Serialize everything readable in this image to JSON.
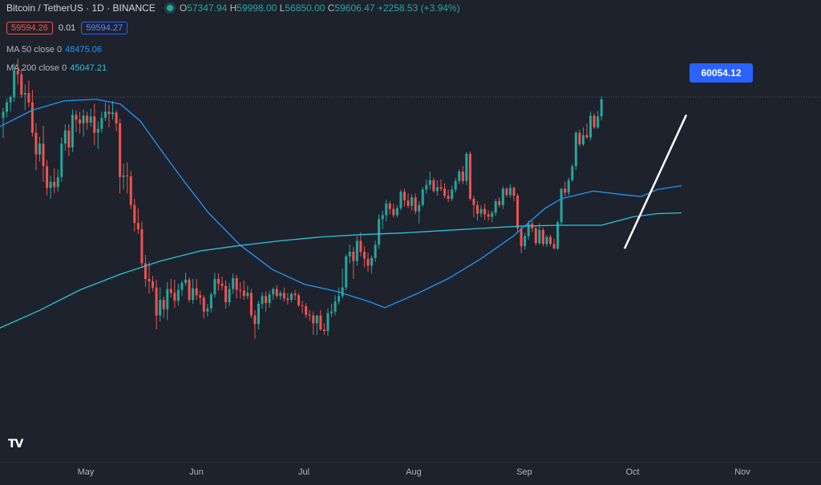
{
  "header": {
    "symbol": "Bitcoin / TetherUS · 1D · BINANCE",
    "ohlc": {
      "o_label": "O",
      "o": "57347.94",
      "h_label": "H",
      "h": "59998.00",
      "l_label": "L",
      "l": "56850.00",
      "c_label": "C",
      "c": "59606.47",
      "change": "+2258.53 (+3.94%)"
    },
    "sell_price": "59594.26",
    "spread": "0.01",
    "buy_price": "59594.27",
    "ma50": {
      "label": "MA 50 close 0",
      "value": "48475.06"
    },
    "ma200": {
      "label": "MA 200 close 0",
      "value": "45047.21"
    }
  },
  "price_tag": "60054.12",
  "logo_text": "TV",
  "colors": {
    "up": "#26a69a",
    "down": "#ef5350",
    "ma50": "#2196f3",
    "ma200": "#26c6da",
    "trendline": "#ffffff",
    "background": "#1e222d"
  },
  "chart_data": {
    "type": "candlestick",
    "x_axis_labels": [
      "May",
      "Jun",
      "Jul",
      "Aug",
      "Sep",
      "Oct",
      "Nov"
    ],
    "ylim": [
      28000,
      65000
    ],
    "candles": [
      {
        "o": 57200,
        "h": 58500,
        "l": 54600,
        "c": 58000
      },
      {
        "o": 58000,
        "h": 59700,
        "l": 57300,
        "c": 59200
      },
      {
        "o": 59200,
        "h": 60100,
        "l": 58000,
        "c": 59900
      },
      {
        "o": 59900,
        "h": 64200,
        "l": 59300,
        "c": 63300
      },
      {
        "o": 63300,
        "h": 64800,
        "l": 61500,
        "c": 62800
      },
      {
        "o": 62800,
        "h": 63500,
        "l": 59800,
        "c": 60200
      },
      {
        "o": 60200,
        "h": 61500,
        "l": 58200,
        "c": 60400
      },
      {
        "o": 60400,
        "h": 62000,
        "l": 58600,
        "c": 59200
      },
      {
        "o": 59200,
        "h": 60800,
        "l": 54800,
        "c": 55300
      },
      {
        "o": 55300,
        "h": 56500,
        "l": 50500,
        "c": 52500
      },
      {
        "o": 52500,
        "h": 54800,
        "l": 51600,
        "c": 53900
      },
      {
        "o": 53900,
        "h": 56200,
        "l": 49000,
        "c": 51000
      },
      {
        "o": 51000,
        "h": 51800,
        "l": 47200,
        "c": 48200
      },
      {
        "o": 48200,
        "h": 49800,
        "l": 46800,
        "c": 49000
      },
      {
        "o": 49000,
        "h": 50700,
        "l": 47500,
        "c": 48300
      },
      {
        "o": 48300,
        "h": 50600,
        "l": 47700,
        "c": 49600
      },
      {
        "o": 49600,
        "h": 54700,
        "l": 49000,
        "c": 53900
      },
      {
        "o": 53900,
        "h": 56400,
        "l": 53000,
        "c": 55600
      },
      {
        "o": 55600,
        "h": 56400,
        "l": 52300,
        "c": 53400
      },
      {
        "o": 53400,
        "h": 58300,
        "l": 52800,
        "c": 57600
      },
      {
        "o": 57600,
        "h": 58200,
        "l": 55400,
        "c": 57000
      },
      {
        "o": 57000,
        "h": 58000,
        "l": 55200,
        "c": 56500
      },
      {
        "o": 56500,
        "h": 58300,
        "l": 54800,
        "c": 57500
      },
      {
        "o": 57500,
        "h": 58000,
        "l": 55700,
        "c": 56600
      },
      {
        "o": 56600,
        "h": 58400,
        "l": 56100,
        "c": 57400
      },
      {
        "o": 57400,
        "h": 59000,
        "l": 53700,
        "c": 55300
      },
      {
        "o": 55300,
        "h": 56800,
        "l": 53200,
        "c": 55800
      },
      {
        "o": 55800,
        "h": 58000,
        "l": 55300,
        "c": 57200
      },
      {
        "o": 57200,
        "h": 59200,
        "l": 56800,
        "c": 58000
      },
      {
        "o": 58000,
        "h": 58900,
        "l": 56000,
        "c": 57700
      },
      {
        "o": 57700,
        "h": 59400,
        "l": 57000,
        "c": 57900
      },
      {
        "o": 57900,
        "h": 58200,
        "l": 55500,
        "c": 56500
      },
      {
        "o": 56500,
        "h": 57100,
        "l": 47500,
        "c": 49600
      },
      {
        "o": 49600,
        "h": 51300,
        "l": 48000,
        "c": 49800
      },
      {
        "o": 49800,
        "h": 51500,
        "l": 47500,
        "c": 49700
      },
      {
        "o": 49700,
        "h": 50400,
        "l": 45500,
        "c": 46000
      },
      {
        "o": 46000,
        "h": 46800,
        "l": 42600,
        "c": 43700
      },
      {
        "o": 43700,
        "h": 45600,
        "l": 42300,
        "c": 42900
      },
      {
        "o": 42900,
        "h": 43900,
        "l": 37900,
        "c": 38500
      },
      {
        "o": 38500,
        "h": 39600,
        "l": 35500,
        "c": 36500
      },
      {
        "o": 36500,
        "h": 38700,
        "l": 34600,
        "c": 36200
      },
      {
        "o": 36200,
        "h": 36900,
        "l": 34900,
        "c": 35400
      },
      {
        "o": 35400,
        "h": 36400,
        "l": 30000,
        "c": 31800
      },
      {
        "o": 31800,
        "h": 35400,
        "l": 31000,
        "c": 33800
      },
      {
        "o": 33800,
        "h": 34200,
        "l": 31500,
        "c": 32600
      },
      {
        "o": 32600,
        "h": 36100,
        "l": 31200,
        "c": 35200
      },
      {
        "o": 35200,
        "h": 36500,
        "l": 34100,
        "c": 34700
      },
      {
        "o": 34700,
        "h": 36400,
        "l": 32800,
        "c": 33700
      },
      {
        "o": 33700,
        "h": 35900,
        "l": 33100,
        "c": 35100
      },
      {
        "o": 35100,
        "h": 36300,
        "l": 34300,
        "c": 36000
      },
      {
        "o": 36000,
        "h": 37300,
        "l": 35600,
        "c": 36400
      },
      {
        "o": 36400,
        "h": 36700,
        "l": 33500,
        "c": 33800
      },
      {
        "o": 33800,
        "h": 36500,
        "l": 33300,
        "c": 35300
      },
      {
        "o": 35300,
        "h": 36500,
        "l": 33800,
        "c": 34400
      },
      {
        "o": 34400,
        "h": 35000,
        "l": 33200,
        "c": 34100
      },
      {
        "o": 34100,
        "h": 34400,
        "l": 31400,
        "c": 32300
      },
      {
        "o": 32300,
        "h": 33300,
        "l": 31700,
        "c": 32700
      },
      {
        "o": 32700,
        "h": 34800,
        "l": 32200,
        "c": 34500
      },
      {
        "o": 34500,
        "h": 37300,
        "l": 34100,
        "c": 36500
      },
      {
        "o": 36500,
        "h": 37200,
        "l": 35000,
        "c": 35900
      },
      {
        "o": 35900,
        "h": 36800,
        "l": 35000,
        "c": 35600
      },
      {
        "o": 35600,
        "h": 36300,
        "l": 32700,
        "c": 33500
      },
      {
        "o": 33500,
        "h": 36000,
        "l": 33000,
        "c": 35200
      },
      {
        "o": 35200,
        "h": 37200,
        "l": 34600,
        "c": 36600
      },
      {
        "o": 36600,
        "h": 37000,
        "l": 34000,
        "c": 35100
      },
      {
        "o": 35100,
        "h": 36100,
        "l": 34000,
        "c": 35000
      },
      {
        "o": 35000,
        "h": 36300,
        "l": 33800,
        "c": 34300
      },
      {
        "o": 34300,
        "h": 35600,
        "l": 33900,
        "c": 34700
      },
      {
        "o": 34700,
        "h": 35200,
        "l": 31500,
        "c": 31800
      },
      {
        "o": 31800,
        "h": 32500,
        "l": 28800,
        "c": 30700
      },
      {
        "o": 30700,
        "h": 33700,
        "l": 30000,
        "c": 33300
      },
      {
        "o": 33300,
        "h": 34800,
        "l": 32700,
        "c": 34300
      },
      {
        "o": 34300,
        "h": 34900,
        "l": 32300,
        "c": 33400
      },
      {
        "o": 33400,
        "h": 35000,
        "l": 32800,
        "c": 34500
      },
      {
        "o": 34500,
        "h": 35400,
        "l": 33800,
        "c": 35200
      },
      {
        "o": 35200,
        "h": 35700,
        "l": 34000,
        "c": 34300
      },
      {
        "o": 34300,
        "h": 35000,
        "l": 33800,
        "c": 34700
      },
      {
        "o": 34700,
        "h": 35400,
        "l": 33600,
        "c": 34000
      },
      {
        "o": 34000,
        "h": 34700,
        "l": 33200,
        "c": 33800
      },
      {
        "o": 33800,
        "h": 34800,
        "l": 33500,
        "c": 34600
      },
      {
        "o": 34600,
        "h": 35100,
        "l": 33800,
        "c": 34400
      },
      {
        "o": 34400,
        "h": 34700,
        "l": 32900,
        "c": 33100
      },
      {
        "o": 33100,
        "h": 33700,
        "l": 32100,
        "c": 33000
      },
      {
        "o": 33000,
        "h": 33400,
        "l": 31500,
        "c": 31900
      },
      {
        "o": 31900,
        "h": 32500,
        "l": 31100,
        "c": 31800
      },
      {
        "o": 31800,
        "h": 32300,
        "l": 29300,
        "c": 30800
      },
      {
        "o": 30800,
        "h": 31900,
        "l": 29300,
        "c": 31800
      },
      {
        "o": 31800,
        "h": 32500,
        "l": 29800,
        "c": 30000
      },
      {
        "o": 30000,
        "h": 30800,
        "l": 29300,
        "c": 29800
      },
      {
        "o": 29800,
        "h": 32700,
        "l": 29200,
        "c": 32100
      },
      {
        "o": 32100,
        "h": 33300,
        "l": 31600,
        "c": 32300
      },
      {
        "o": 32300,
        "h": 34400,
        "l": 31800,
        "c": 33600
      },
      {
        "o": 33600,
        "h": 35400,
        "l": 33200,
        "c": 34300
      },
      {
        "o": 34300,
        "h": 37800,
        "l": 34000,
        "c": 35400
      },
      {
        "o": 35400,
        "h": 39700,
        "l": 35000,
        "c": 39400
      },
      {
        "o": 39400,
        "h": 40900,
        "l": 38500,
        "c": 40000
      },
      {
        "o": 40000,
        "h": 40600,
        "l": 36500,
        "c": 38800
      },
      {
        "o": 38800,
        "h": 42000,
        "l": 38200,
        "c": 41400
      },
      {
        "o": 41400,
        "h": 42500,
        "l": 39400,
        "c": 40000
      },
      {
        "o": 40000,
        "h": 40700,
        "l": 38000,
        "c": 39100
      },
      {
        "o": 39100,
        "h": 39900,
        "l": 37400,
        "c": 38200
      },
      {
        "o": 38200,
        "h": 39500,
        "l": 37200,
        "c": 39200
      },
      {
        "o": 39200,
        "h": 41400,
        "l": 38700,
        "c": 40900
      },
      {
        "o": 40900,
        "h": 44800,
        "l": 40400,
        "c": 44200
      },
      {
        "o": 44200,
        "h": 45300,
        "l": 42900,
        "c": 44700
      },
      {
        "o": 44700,
        "h": 46700,
        "l": 43900,
        "c": 46200
      },
      {
        "o": 46200,
        "h": 46500,
        "l": 44800,
        "c": 45500
      },
      {
        "o": 45500,
        "h": 46200,
        "l": 44400,
        "c": 44700
      },
      {
        "o": 44700,
        "h": 46000,
        "l": 44400,
        "c": 45600
      },
      {
        "o": 45600,
        "h": 48000,
        "l": 45300,
        "c": 47700
      },
      {
        "o": 47700,
        "h": 48100,
        "l": 45800,
        "c": 46600
      },
      {
        "o": 46600,
        "h": 47500,
        "l": 45600,
        "c": 45900
      },
      {
        "o": 45900,
        "h": 47400,
        "l": 45300,
        "c": 47000
      },
      {
        "o": 47000,
        "h": 47500,
        "l": 44800,
        "c": 45200
      },
      {
        "o": 45200,
        "h": 46500,
        "l": 43600,
        "c": 46000
      },
      {
        "o": 46000,
        "h": 48300,
        "l": 45800,
        "c": 48000
      },
      {
        "o": 48000,
        "h": 49300,
        "l": 47500,
        "c": 48600
      },
      {
        "o": 48600,
        "h": 50300,
        "l": 48000,
        "c": 49200
      },
      {
        "o": 49200,
        "h": 49500,
        "l": 47600,
        "c": 47800
      },
      {
        "o": 47800,
        "h": 49200,
        "l": 47200,
        "c": 48300
      },
      {
        "o": 48300,
        "h": 49300,
        "l": 47800,
        "c": 48100
      },
      {
        "o": 48100,
        "h": 48800,
        "l": 46900,
        "c": 47200
      },
      {
        "o": 47200,
        "h": 48000,
        "l": 46400,
        "c": 46800
      },
      {
        "o": 46800,
        "h": 48500,
        "l": 46500,
        "c": 48000
      },
      {
        "o": 48000,
        "h": 49500,
        "l": 47600,
        "c": 49100
      },
      {
        "o": 49100,
        "h": 50600,
        "l": 48700,
        "c": 50300
      },
      {
        "o": 50300,
        "h": 51000,
        "l": 48700,
        "c": 49100
      },
      {
        "o": 49100,
        "h": 52800,
        "l": 48600,
        "c": 52600
      },
      {
        "o": 52600,
        "h": 52900,
        "l": 46600,
        "c": 46800
      },
      {
        "o": 46800,
        "h": 47200,
        "l": 44400,
        "c": 46000
      },
      {
        "o": 46000,
        "h": 46500,
        "l": 44000,
        "c": 44900
      },
      {
        "o": 44900,
        "h": 46000,
        "l": 44400,
        "c": 45500
      },
      {
        "o": 45500,
        "h": 46200,
        "l": 44100,
        "c": 44800
      },
      {
        "o": 44800,
        "h": 45300,
        "l": 44000,
        "c": 44500
      },
      {
        "o": 44500,
        "h": 45300,
        "l": 43800,
        "c": 45000
      },
      {
        "o": 45000,
        "h": 46800,
        "l": 44600,
        "c": 46500
      },
      {
        "o": 46500,
        "h": 47000,
        "l": 45700,
        "c": 46000
      },
      {
        "o": 46000,
        "h": 48400,
        "l": 45500,
        "c": 48100
      },
      {
        "o": 48100,
        "h": 48300,
        "l": 47000,
        "c": 47300
      },
      {
        "o": 47300,
        "h": 48700,
        "l": 46900,
        "c": 48200
      },
      {
        "o": 48200,
        "h": 48400,
        "l": 46500,
        "c": 47200
      },
      {
        "o": 47200,
        "h": 47500,
        "l": 42500,
        "c": 43000
      },
      {
        "o": 43000,
        "h": 43400,
        "l": 39800,
        "c": 40700
      },
      {
        "o": 40700,
        "h": 42400,
        "l": 40200,
        "c": 42000
      },
      {
        "o": 42000,
        "h": 44000,
        "l": 41500,
        "c": 43600
      },
      {
        "o": 43600,
        "h": 44000,
        "l": 42500,
        "c": 43000
      },
      {
        "o": 43000,
        "h": 43300,
        "l": 40800,
        "c": 41100
      },
      {
        "o": 41100,
        "h": 43700,
        "l": 40900,
        "c": 42800
      },
      {
        "o": 42800,
        "h": 43100,
        "l": 40700,
        "c": 41000
      },
      {
        "o": 41000,
        "h": 42200,
        "l": 40600,
        "c": 41900
      },
      {
        "o": 41900,
        "h": 42200,
        "l": 40700,
        "c": 41000
      },
      {
        "o": 41000,
        "h": 41700,
        "l": 40300,
        "c": 40400
      },
      {
        "o": 40400,
        "h": 44000,
        "l": 40200,
        "c": 43800
      },
      {
        "o": 43800,
        "h": 48200,
        "l": 43500,
        "c": 48100
      },
      {
        "o": 48100,
        "h": 49000,
        "l": 47100,
        "c": 47600
      },
      {
        "o": 47600,
        "h": 49500,
        "l": 47200,
        "c": 49200
      },
      {
        "o": 49200,
        "h": 51300,
        "l": 49000,
        "c": 51000
      },
      {
        "o": 51000,
        "h": 55500,
        "l": 50500,
        "c": 55300
      },
      {
        "o": 55300,
        "h": 55700,
        "l": 53500,
        "c": 53800
      },
      {
        "o": 53800,
        "h": 56000,
        "l": 53600,
        "c": 55000
      },
      {
        "o": 55000,
        "h": 56500,
        "l": 54500,
        "c": 54700
      },
      {
        "o": 54700,
        "h": 58000,
        "l": 54300,
        "c": 57500
      },
      {
        "o": 57500,
        "h": 57800,
        "l": 55800,
        "c": 56000
      },
      {
        "o": 56000,
        "h": 58100,
        "l": 55800,
        "c": 57400
      },
      {
        "o": 57400,
        "h": 60000,
        "l": 56900,
        "c": 59600
      }
    ],
    "ma50": [
      [
        0,
        56100
      ],
      [
        40,
        58200
      ],
      [
        80,
        59400
      ],
      [
        120,
        59600
      ],
      [
        150,
        59000
      ],
      [
        175,
        56800
      ],
      [
        200,
        53200
      ],
      [
        230,
        49000
      ],
      [
        260,
        45000
      ],
      [
        300,
        40800
      ],
      [
        340,
        37700
      ],
      [
        380,
        35800
      ],
      [
        420,
        34900
      ],
      [
        460,
        33600
      ],
      [
        480,
        32800
      ],
      [
        520,
        34600
      ],
      [
        560,
        36600
      ],
      [
        600,
        39100
      ],
      [
        640,
        42000
      ],
      [
        680,
        45600
      ],
      [
        700,
        46800
      ],
      [
        740,
        47800
      ],
      [
        780,
        47300
      ],
      [
        800,
        47100
      ],
      [
        820,
        48000
      ],
      [
        850,
        48500
      ]
    ],
    "ma200": [
      [
        0,
        30200
      ],
      [
        50,
        32500
      ],
      [
        100,
        35100
      ],
      [
        150,
        37100
      ],
      [
        200,
        38800
      ],
      [
        250,
        40100
      ],
      [
        300,
        40800
      ],
      [
        350,
        41400
      ],
      [
        400,
        41900
      ],
      [
        450,
        42200
      ],
      [
        500,
        42400
      ],
      [
        550,
        42700
      ],
      [
        600,
        43000
      ],
      [
        650,
        43300
      ],
      [
        700,
        43400
      ],
      [
        750,
        43400
      ],
      [
        790,
        44500
      ],
      [
        820,
        44900
      ],
      [
        850,
        45000
      ]
    ],
    "trendline": {
      "from": 40400,
      "to": 57600
    },
    "last_price": 60054.12
  }
}
